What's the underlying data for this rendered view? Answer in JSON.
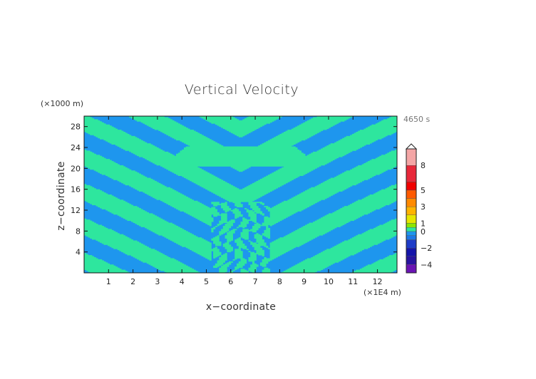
{
  "chart_data": {
    "type": "heatmap",
    "title": "Vertical Velocity",
    "xlabel": "x−coordinate",
    "ylabel": "z−coordinate",
    "x_unit": "(×1E4 m)",
    "y_unit": "(×1000 m)",
    "time_label": "4650 s",
    "xlim": [
      0,
      12.8
    ],
    "ylim": [
      0,
      30
    ],
    "x_ticks": [
      "1",
      "2",
      "3",
      "4",
      "5",
      "6",
      "7",
      "8",
      "9",
      "10",
      "11",
      "12"
    ],
    "y_ticks": [
      "4",
      "8",
      "12",
      "16",
      "20",
      "24",
      "28"
    ],
    "colorbar": {
      "tick_labels": [
        "8",
        "5",
        "3",
        "1",
        "0",
        "−2",
        "−4"
      ],
      "tick_values": [
        8,
        5,
        3,
        1,
        0,
        -2,
        -4
      ],
      "levels": [
        {
          "from": 8,
          "to": 10,
          "color": "#f4a6a6"
        },
        {
          "from": 6,
          "to": 8,
          "color": "#e8283a"
        },
        {
          "from": 5,
          "to": 6,
          "color": "#f00000"
        },
        {
          "from": 4,
          "to": 5,
          "color": "#ff5a00"
        },
        {
          "from": 3,
          "to": 4,
          "color": "#ff8a00"
        },
        {
          "from": 2,
          "to": 3,
          "color": "#ffb400"
        },
        {
          "from": 1,
          "to": 2,
          "color": "#e6e600"
        },
        {
          "from": 0.5,
          "to": 1,
          "color": "#8ce600"
        },
        {
          "from": 0,
          "to": 0.5,
          "color": "#2ee69e"
        },
        {
          "from": -0.5,
          "to": 0,
          "color": "#1e96ee"
        },
        {
          "from": -1,
          "to": -0.5,
          "color": "#1e78e6"
        },
        {
          "from": -2,
          "to": -1,
          "color": "#1e3cc8"
        },
        {
          "from": -3,
          "to": -2,
          "color": "#1414aa"
        },
        {
          "from": -4,
          "to": -3,
          "color": "#2814a0"
        },
        {
          "from": -5,
          "to": -4,
          "color": "#6a14b4"
        }
      ]
    },
    "field_colors": {
      "positive": "#2ee69e",
      "negative": "#1e96ee"
    }
  }
}
